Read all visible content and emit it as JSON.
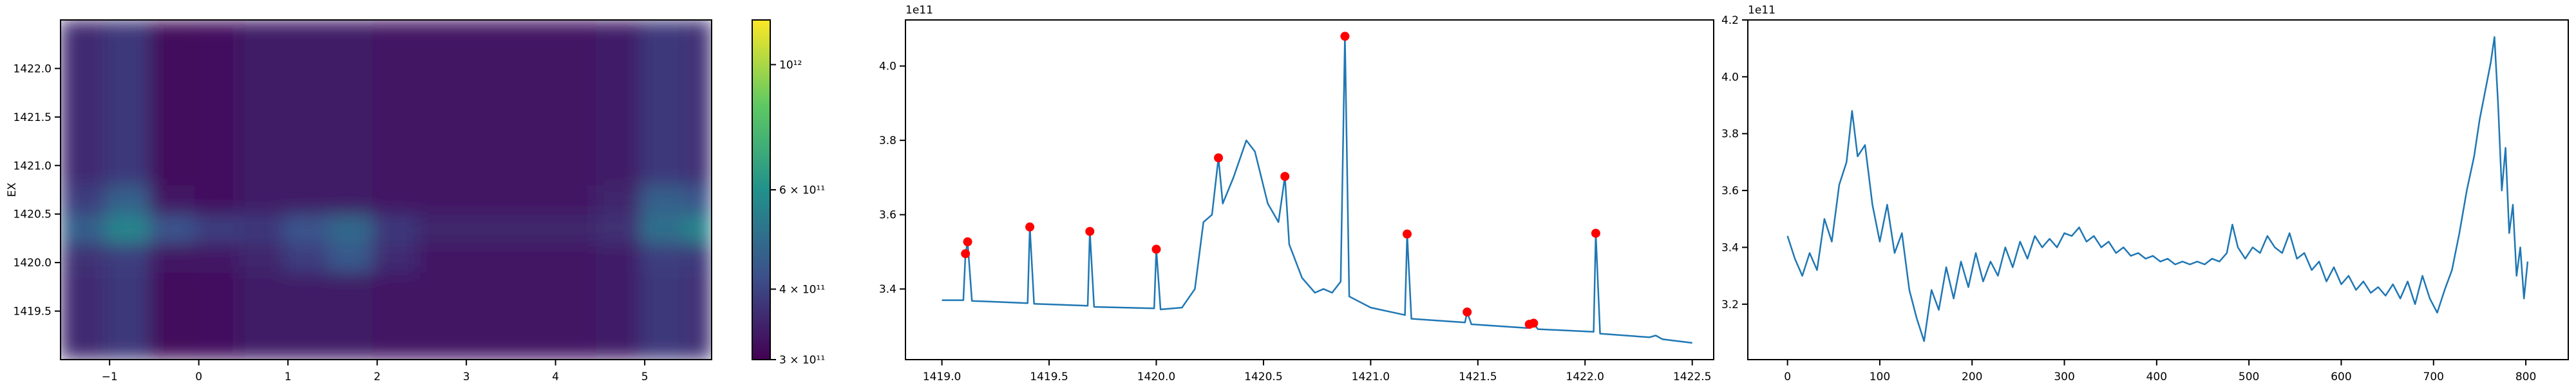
{
  "chart_data": [
    {
      "type": "heatmap",
      "ylabel": "EX",
      "xlim": [
        -1.55,
        5.75
      ],
      "ylim": [
        1419.0,
        1422.5
      ],
      "xticks": [
        {
          "value": -1,
          "label": "−1"
        },
        0,
        1,
        2,
        3,
        4,
        5
      ],
      "yticks": [
        1419.5,
        {
          "value": 1420,
          "label": "1420.0"
        },
        1420.5,
        {
          "value": 1421,
          "label": "1421.0"
        },
        1421.5,
        {
          "value": 1422,
          "label": "1422.0"
        }
      ],
      "x_edges": [
        -1.55,
        -1.05,
        -0.55,
        -0.05,
        0.45,
        0.95,
        1.45,
        1.95,
        2.45,
        2.95,
        3.45,
        3.95,
        4.45,
        4.95,
        5.45,
        5.75
      ],
      "y_edges": [
        1419.0,
        1419.3,
        1419.6,
        1419.9,
        1420.2,
        1420.5,
        1420.8,
        1421.1,
        1421.4,
        1421.7,
        1422.0,
        1422.3,
        1422.5
      ],
      "z": [
        [
          360000000000.0,
          380000000000.0,
          315000000000.0,
          320000000000.0,
          335000000000.0,
          335000000000.0,
          335000000000.0,
          330000000000.0,
          330000000000.0,
          330000000000.0,
          330000000000.0,
          330000000000.0,
          340000000000.0,
          380000000000.0,
          370000000000.0
        ],
        [
          360000000000.0,
          380000000000.0,
          315000000000.0,
          320000000000.0,
          335000000000.0,
          335000000000.0,
          335000000000.0,
          330000000000.0,
          330000000000.0,
          330000000000.0,
          330000000000.0,
          330000000000.0,
          340000000000.0,
          380000000000.0,
          370000000000.0
        ],
        [
          360000000000.0,
          380000000000.0,
          315000000000.0,
          320000000000.0,
          335000000000.0,
          335000000000.0,
          335000000000.0,
          330000000000.0,
          330000000000.0,
          330000000000.0,
          330000000000.0,
          330000000000.0,
          340000000000.0,
          380000000000.0,
          370000000000.0
        ],
        [
          370000000000.0,
          390000000000.0,
          330000000000.0,
          330000000000.0,
          350000000000.0,
          390000000000.0,
          440000000000.0,
          360000000000.0,
          330000000000.0,
          330000000000.0,
          330000000000.0,
          330000000000.0,
          340000000000.0,
          390000000000.0,
          380000000000.0
        ],
        [
          460000000000.0,
          560000000000.0,
          430000000000.0,
          390000000000.0,
          380000000000.0,
          430000000000.0,
          480000000000.0,
          380000000000.0,
          350000000000.0,
          350000000000.0,
          350000000000.0,
          350000000000.0,
          370000000000.0,
          500000000000.0,
          560000000000.0
        ],
        [
          390000000000.0,
          460000000000.0,
          330000000000.0,
          320000000000.0,
          335000000000.0,
          335000000000.0,
          335000000000.0,
          330000000000.0,
          330000000000.0,
          330000000000.0,
          330000000000.0,
          330000000000.0,
          350000000000.0,
          460000000000.0,
          430000000000.0
        ],
        [
          360000000000.0,
          380000000000.0,
          315000000000.0,
          320000000000.0,
          335000000000.0,
          335000000000.0,
          335000000000.0,
          330000000000.0,
          330000000000.0,
          330000000000.0,
          330000000000.0,
          330000000000.0,
          340000000000.0,
          380000000000.0,
          370000000000.0
        ],
        [
          360000000000.0,
          380000000000.0,
          315000000000.0,
          320000000000.0,
          335000000000.0,
          335000000000.0,
          335000000000.0,
          330000000000.0,
          330000000000.0,
          330000000000.0,
          330000000000.0,
          330000000000.0,
          340000000000.0,
          380000000000.0,
          370000000000.0
        ],
        [
          360000000000.0,
          380000000000.0,
          315000000000.0,
          320000000000.0,
          335000000000.0,
          335000000000.0,
          335000000000.0,
          330000000000.0,
          330000000000.0,
          330000000000.0,
          330000000000.0,
          330000000000.0,
          340000000000.0,
          380000000000.0,
          370000000000.0
        ],
        [
          360000000000.0,
          380000000000.0,
          315000000000.0,
          320000000000.0,
          335000000000.0,
          335000000000.0,
          335000000000.0,
          330000000000.0,
          330000000000.0,
          330000000000.0,
          330000000000.0,
          330000000000.0,
          340000000000.0,
          380000000000.0,
          370000000000.0
        ],
        [
          360000000000.0,
          380000000000.0,
          315000000000.0,
          320000000000.0,
          335000000000.0,
          335000000000.0,
          335000000000.0,
          330000000000.0,
          330000000000.0,
          330000000000.0,
          330000000000.0,
          330000000000.0,
          340000000000.0,
          380000000000.0,
          370000000000.0
        ],
        [
          360000000000.0,
          380000000000.0,
          315000000000.0,
          320000000000.0,
          335000000000.0,
          335000000000.0,
          335000000000.0,
          330000000000.0,
          330000000000.0,
          330000000000.0,
          330000000000.0,
          330000000000.0,
          340000000000.0,
          380000000000.0,
          370000000000.0
        ]
      ],
      "zlim": [
        300000000000.0,
        1200000000000.0
      ],
      "colorbar_scale": "log",
      "colormap": [
        "#440154",
        "#3b528b",
        "#21918c",
        "#5ec962",
        "#fde725"
      ],
      "colorbar_ticks": [
        {
          "value": 300000000000.0,
          "label": "3 × 10¹¹"
        },
        {
          "value": 400000000000.0,
          "label": "4 × 10¹¹"
        },
        {
          "value": 600000000000.0,
          "label": "6 × 10¹¹"
        },
        {
          "value": 1000000000000.0,
          "label": "10¹²"
        }
      ]
    },
    {
      "type": "line",
      "offset_label": "1e11",
      "color": "#1f77b4",
      "xlim": [
        1418.83,
        1422.6
      ],
      "ylim": [
        3.21,
        4.124
      ],
      "xticks": [
        {
          "value": 1419,
          "label": "1419.0"
        },
        1419.5,
        {
          "value": 1420,
          "label": "1420.0"
        },
        1420.5,
        {
          "value": 1421,
          "label": "1421.0"
        },
        1421.5,
        {
          "value": 1422,
          "label": "1422.0"
        },
        1422.5
      ],
      "yticks": [
        3.4,
        3.6,
        3.8,
        {
          "value": 4,
          "label": "4.0"
        }
      ],
      "x": [
        1419.0,
        1419.1,
        1419.11,
        1419.12,
        1419.14,
        1419.4,
        1419.41,
        1419.43,
        1419.68,
        1419.69,
        1419.71,
        1419.99,
        1420.0,
        1420.02,
        1420.12,
        1420.18,
        1420.22,
        1420.26,
        1420.29,
        1420.31,
        1420.36,
        1420.42,
        1420.46,
        1420.52,
        1420.57,
        1420.6,
        1420.62,
        1420.68,
        1420.74,
        1420.78,
        1420.82,
        1420.86,
        1420.88,
        1420.9,
        1421.0,
        1421.16,
        1421.17,
        1421.19,
        1421.44,
        1421.45,
        1421.47,
        1421.73,
        1421.74,
        1421.76,
        1421.78,
        1422.04,
        1422.05,
        1422.07,
        1422.3,
        1422.33,
        1422.36,
        1422.5
      ],
      "values": [
        3.37,
        3.37,
        3.495,
        3.527,
        3.368,
        3.362,
        3.567,
        3.36,
        3.355,
        3.555,
        3.352,
        3.348,
        3.507,
        3.345,
        3.35,
        3.4,
        3.58,
        3.6,
        3.753,
        3.63,
        3.7,
        3.8,
        3.77,
        3.63,
        3.58,
        3.703,
        3.52,
        3.43,
        3.39,
        3.4,
        3.39,
        3.42,
        4.08,
        3.38,
        3.35,
        3.33,
        3.548,
        3.32,
        3.31,
        3.338,
        3.305,
        3.295,
        3.305,
        3.308,
        3.292,
        3.285,
        3.55,
        3.28,
        3.27,
        3.275,
        3.265,
        3.255
      ],
      "peaks": {
        "color": "#ff0000",
        "x": [
          1419.11,
          1419.12,
          1419.41,
          1419.69,
          1420.0,
          1420.29,
          1420.6,
          1420.88,
          1421.17,
          1421.45,
          1421.74,
          1421.76,
          1422.05
        ],
        "values": [
          3.495,
          3.527,
          3.567,
          3.555,
          3.507,
          3.753,
          3.703,
          4.08,
          3.548,
          3.338,
          3.305,
          3.308,
          3.55
        ]
      }
    },
    {
      "type": "line",
      "offset_label": "1e11",
      "color": "#1f77b4",
      "xlim": [
        -43,
        846
      ],
      "ylim": [
        3.005,
        4.2
      ],
      "xticks": [
        0,
        100,
        200,
        300,
        400,
        500,
        600,
        700,
        800
      ],
      "yticks": [
        3.2,
        3.4,
        3.6,
        3.8,
        {
          "value": 4,
          "label": "4.0"
        },
        4.2
      ],
      "x": [
        0,
        8,
        16,
        24,
        32,
        40,
        48,
        56,
        64,
        70,
        76,
        84,
        92,
        100,
        108,
        116,
        124,
        132,
        140,
        148,
        156,
        164,
        172,
        180,
        188,
        196,
        204,
        212,
        220,
        228,
        236,
        244,
        252,
        260,
        268,
        276,
        284,
        292,
        300,
        308,
        316,
        324,
        332,
        340,
        348,
        356,
        364,
        372,
        380,
        388,
        396,
        404,
        412,
        420,
        428,
        436,
        444,
        452,
        460,
        468,
        476,
        482,
        488,
        496,
        504,
        512,
        520,
        528,
        536,
        544,
        552,
        560,
        568,
        576,
        584,
        592,
        600,
        608,
        616,
        624,
        632,
        640,
        648,
        656,
        664,
        672,
        680,
        688,
        696,
        704,
        712,
        720,
        728,
        736,
        744,
        750,
        756,
        762,
        766,
        770,
        774,
        778,
        782,
        786,
        790,
        794,
        798,
        802
      ],
      "values": [
        3.44,
        3.36,
        3.3,
        3.38,
        3.32,
        3.5,
        3.42,
        3.62,
        3.7,
        3.88,
        3.72,
        3.76,
        3.55,
        3.42,
        3.55,
        3.38,
        3.45,
        3.25,
        3.15,
        3.07,
        3.25,
        3.18,
        3.33,
        3.22,
        3.35,
        3.26,
        3.38,
        3.28,
        3.35,
        3.3,
        3.4,
        3.33,
        3.42,
        3.36,
        3.44,
        3.4,
        3.43,
        3.4,
        3.45,
        3.44,
        3.47,
        3.42,
        3.44,
        3.4,
        3.42,
        3.38,
        3.4,
        3.37,
        3.38,
        3.36,
        3.37,
        3.35,
        3.36,
        3.34,
        3.35,
        3.34,
        3.35,
        3.34,
        3.36,
        3.35,
        3.38,
        3.48,
        3.4,
        3.36,
        3.4,
        3.38,
        3.44,
        3.4,
        3.38,
        3.45,
        3.36,
        3.38,
        3.32,
        3.35,
        3.28,
        3.33,
        3.27,
        3.3,
        3.25,
        3.28,
        3.24,
        3.26,
        3.23,
        3.27,
        3.22,
        3.28,
        3.2,
        3.3,
        3.22,
        3.17,
        3.25,
        3.32,
        3.45,
        3.6,
        3.72,
        3.85,
        3.95,
        4.05,
        4.14,
        3.9,
        3.6,
        3.75,
        3.45,
        3.55,
        3.3,
        3.4,
        3.22,
        3.35
      ]
    }
  ]
}
